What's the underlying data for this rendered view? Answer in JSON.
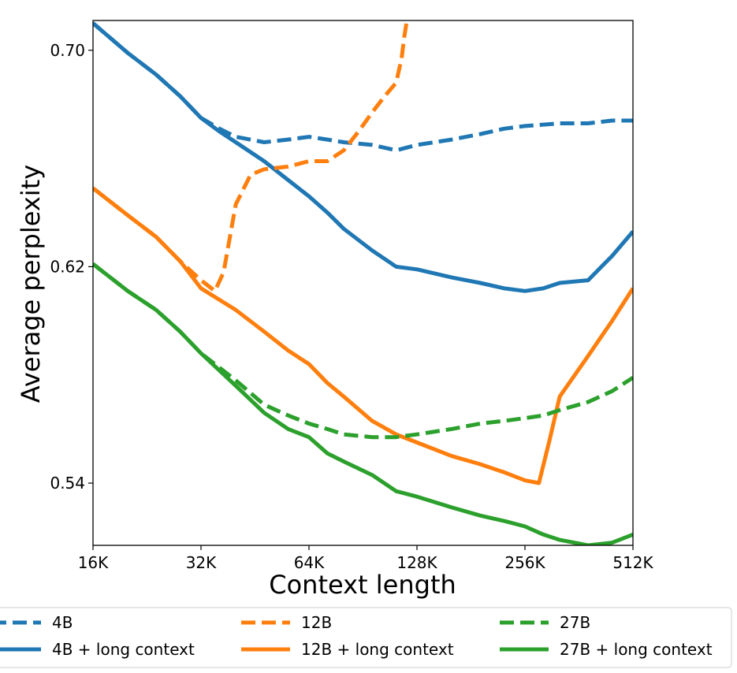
{
  "chart_data": {
    "type": "line",
    "title": "",
    "xlabel": "Context length",
    "ylabel": "Average perplexity",
    "x_scale": "log2",
    "x_ticks": [
      16,
      32,
      64,
      128,
      256,
      512
    ],
    "x_tick_labels": [
      "16K",
      "32K",
      "64K",
      "128K",
      "256K",
      "512K"
    ],
    "y_ticks": [
      0.54,
      0.62,
      0.7
    ],
    "y_tick_labels": [
      "0.54",
      "0.62",
      "0.70"
    ],
    "xlim": [
      16,
      512
    ],
    "ylim": [
      0.517,
      0.711
    ],
    "grid": false,
    "legend_position": "bottom",
    "series": [
      {
        "name": "4B",
        "color": "#1f77b4",
        "style": "dashed",
        "x": [
          16,
          20,
          24,
          28,
          32,
          36,
          40,
          48,
          56,
          64,
          72,
          80,
          96,
          112,
          128,
          160,
          192,
          224,
          256,
          320,
          384,
          448,
          512
        ],
        "y": [
          0.71,
          0.699,
          0.691,
          0.683,
          0.675,
          0.671,
          0.668,
          0.666,
          0.667,
          0.668,
          0.667,
          0.666,
          0.665,
          0.663,
          0.665,
          0.667,
          0.669,
          0.671,
          0.672,
          0.673,
          0.673,
          0.674,
          0.674
        ]
      },
      {
        "name": "4B + long context",
        "color": "#1f77b4",
        "style": "solid",
        "x": [
          16,
          20,
          24,
          28,
          32,
          36,
          40,
          48,
          56,
          64,
          72,
          80,
          96,
          112,
          128,
          160,
          192,
          224,
          256,
          288,
          320,
          384,
          448,
          512
        ],
        "y": [
          0.71,
          0.699,
          0.691,
          0.683,
          0.675,
          0.67,
          0.666,
          0.659,
          0.652,
          0.646,
          0.64,
          0.634,
          0.626,
          0.62,
          0.619,
          0.616,
          0.614,
          0.612,
          0.611,
          0.612,
          0.614,
          0.615,
          0.624,
          0.633
        ]
      },
      {
        "name": "12B",
        "color": "#ff7f0e",
        "style": "dashed",
        "x": [
          16,
          20,
          24,
          28,
          32,
          35,
          37,
          40,
          44,
          48,
          56,
          64,
          72,
          80,
          88,
          96,
          104,
          112,
          116,
          118,
          120
        ],
        "y": [
          0.649,
          0.639,
          0.631,
          0.622,
          0.615,
          0.611,
          0.618,
          0.643,
          0.654,
          0.656,
          0.657,
          0.659,
          0.659,
          0.663,
          0.67,
          0.677,
          0.683,
          0.688,
          0.697,
          0.705,
          0.711
        ]
      },
      {
        "name": "12B + long context",
        "color": "#ff7f0e",
        "style": "solid",
        "x": [
          16,
          20,
          24,
          28,
          32,
          40,
          48,
          56,
          64,
          72,
          80,
          96,
          112,
          128,
          160,
          192,
          224,
          256,
          280,
          300,
          320,
          384,
          448,
          512
        ],
        "y": [
          0.649,
          0.639,
          0.631,
          0.622,
          0.612,
          0.604,
          0.596,
          0.589,
          0.584,
          0.577,
          0.572,
          0.563,
          0.558,
          0.555,
          0.55,
          0.547,
          0.544,
          0.541,
          0.54,
          0.556,
          0.572,
          0.587,
          0.6,
          0.612
        ]
      },
      {
        "name": "27B",
        "color": "#2ca02c",
        "style": "dashed",
        "x": [
          16,
          20,
          24,
          28,
          32,
          40,
          48,
          56,
          64,
          72,
          80,
          96,
          112,
          128,
          160,
          192,
          224,
          256,
          288,
          320,
          384,
          448,
          512
        ],
        "y": [
          0.621,
          0.611,
          0.604,
          0.596,
          0.588,
          0.578,
          0.569,
          0.565,
          0.562,
          0.56,
          0.558,
          0.557,
          0.557,
          0.558,
          0.56,
          0.562,
          0.563,
          0.564,
          0.565,
          0.567,
          0.57,
          0.574,
          0.579
        ]
      },
      {
        "name": "27B + long context",
        "color": "#2ca02c",
        "style": "solid",
        "x": [
          16,
          20,
          24,
          28,
          32,
          40,
          48,
          56,
          64,
          72,
          80,
          96,
          112,
          128,
          160,
          192,
          224,
          256,
          288,
          320,
          384,
          448,
          512
        ],
        "y": [
          0.621,
          0.611,
          0.604,
          0.596,
          0.588,
          0.576,
          0.566,
          0.56,
          0.557,
          0.551,
          0.548,
          0.543,
          0.537,
          0.535,
          0.531,
          0.528,
          0.526,
          0.524,
          0.521,
          0.519,
          0.517,
          0.518,
          0.521
        ]
      }
    ]
  }
}
